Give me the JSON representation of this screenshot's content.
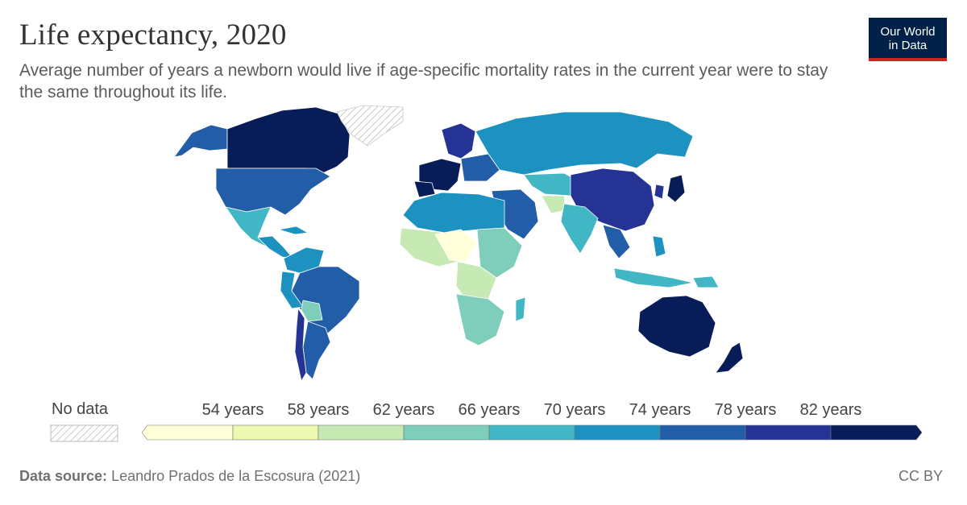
{
  "header": {
    "title": "Life expectancy, 2020",
    "subtitle": "Average number of years a newborn would live if age-specific mortality rates in the current year were to stay the same throughout its life."
  },
  "logo": {
    "line1": "Our World",
    "line2": "in Data"
  },
  "legend": {
    "no_data_label": "No data",
    "ticks": [
      "54 years",
      "58 years",
      "62 years",
      "66 years",
      "70 years",
      "74 years",
      "78 years",
      "82 years"
    ],
    "colors": [
      "#ffffd9",
      "#edf8b1",
      "#c7e9b4",
      "#7fcdbb",
      "#41b6c4",
      "#1d91c0",
      "#225ea8",
      "#253494",
      "#081d58"
    ]
  },
  "footer": {
    "source_label": "Data source:",
    "source_value": "Leandro Prados de la Escosura (2021)",
    "license": "CC BY"
  }
}
